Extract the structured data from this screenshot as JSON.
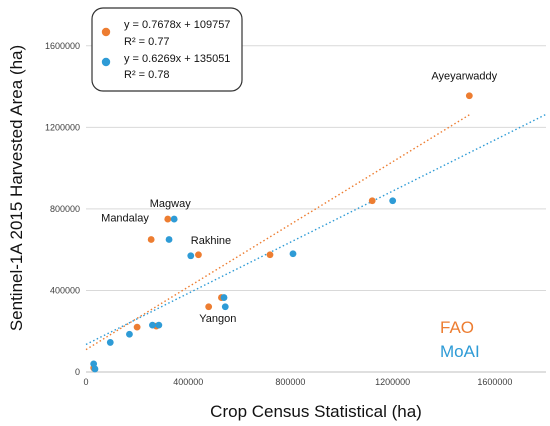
{
  "chart_data": {
    "type": "scatter",
    "xlabel": "Crop Census Statistical (ha)",
    "ylabel": "Sentinel-1A 2015 Harvested Area (ha)",
    "xlim": [
      0,
      1800000
    ],
    "ylim": [
      0,
      1800000
    ],
    "x_ticks": [
      "0",
      "400000",
      "800000",
      "1200000",
      "1600000"
    ],
    "y_ticks": [
      "0",
      "400000",
      "800000",
      "1200000",
      "1600000"
    ],
    "grid": "horizontal",
    "legend_placement": "top-left",
    "series": [
      {
        "name": "FAO",
        "color": "#ED7D31",
        "equation": "y = 0.7678x + 109757",
        "r2": "R² = 0.77",
        "trend": {
          "slope": 0.7678,
          "intercept": 109757,
          "x_range": [
            0,
            1500000
          ]
        },
        "points": [
          {
            "x": 30000,
            "y": 20000
          },
          {
            "x": 200000,
            "y": 220000
          },
          {
            "x": 275000,
            "y": 225000
          },
          {
            "x": 255000,
            "y": 650000
          },
          {
            "x": 320000,
            "y": 750000
          },
          {
            "x": 440000,
            "y": 575000
          },
          {
            "x": 480000,
            "y": 320000
          },
          {
            "x": 530000,
            "y": 365000
          },
          {
            "x": 720000,
            "y": 575000
          },
          {
            "x": 1120000,
            "y": 840000
          },
          {
            "x": 1500000,
            "y": 1355000
          }
        ]
      },
      {
        "name": "MoAI",
        "color": "#2E9BD6",
        "equation": "y = 0.6269x + 135051",
        "r2": "R² = 0.78",
        "trend": {
          "slope": 0.6269,
          "intercept": 135051,
          "x_range": [
            0,
            1800000
          ]
        },
        "points": [
          {
            "x": 30000,
            "y": 40000
          },
          {
            "x": 35000,
            "y": 15000
          },
          {
            "x": 95000,
            "y": 145000
          },
          {
            "x": 170000,
            "y": 185000
          },
          {
            "x": 260000,
            "y": 230000
          },
          {
            "x": 285000,
            "y": 230000
          },
          {
            "x": 325000,
            "y": 650000
          },
          {
            "x": 345000,
            "y": 750000
          },
          {
            "x": 410000,
            "y": 570000
          },
          {
            "x": 540000,
            "y": 365000
          },
          {
            "x": 545000,
            "y": 320000
          },
          {
            "x": 810000,
            "y": 580000
          },
          {
            "x": 1200000,
            "y": 840000
          }
        ]
      }
    ],
    "annotations": [
      {
        "text": "Ayeyarwaddy",
        "x": 1500000,
        "y": 1355000
      },
      {
        "text": "Magway",
        "x": 320000,
        "y": 750000
      },
      {
        "text": "Mandalay",
        "x": 255000,
        "y": 650000
      },
      {
        "text": "Rakhine",
        "x": 410000,
        "y": 570000
      },
      {
        "text": "Yangon",
        "x": 545000,
        "y": 320000
      }
    ],
    "series_tags": [
      "FAO",
      "MoAI"
    ]
  }
}
